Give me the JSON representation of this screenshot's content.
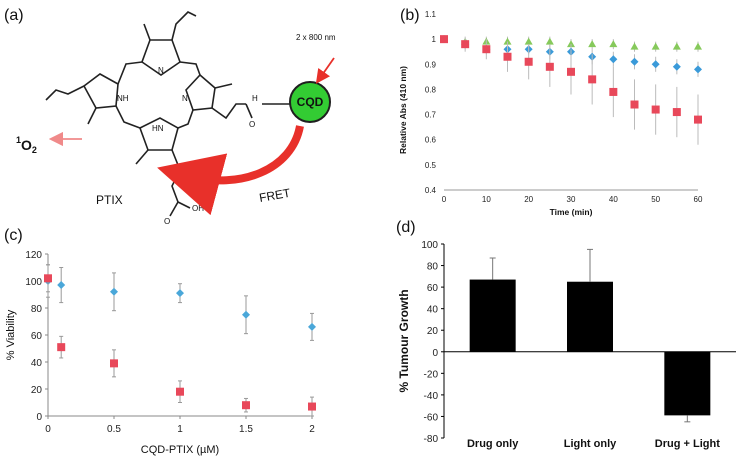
{
  "panels": {
    "a": {
      "label": "(a)",
      "molecule_name": "PTIX",
      "nanoparticle_label": "CQD",
      "excitation_label": "2 x 800 nm",
      "transfer_label": "FRET",
      "singlet_oxygen": {
        "prefix": "1",
        "species": "O",
        "subscript": "2"
      },
      "atoms": {
        "nh": "NH",
        "n": "N",
        "hn": "HN",
        "h": "H",
        "o": "O",
        "oh": "OH"
      },
      "colors": {
        "cqd": "#33cc33",
        "arrow": "#e8302a",
        "o2_arrow": "#f08a8a"
      }
    },
    "b": {
      "label": "(b)"
    },
    "c": {
      "label": "(c)"
    },
    "d": {
      "label": "(d)"
    }
  },
  "chart_data": [
    {
      "panel": "b",
      "type": "scatter",
      "title": "",
      "xlabel": "Time (min)",
      "ylabel": "Relative Abs (410 nm)",
      "xlim": [
        0,
        60
      ],
      "ylim": [
        0.4,
        1.1
      ],
      "xticks": [
        0,
        10,
        20,
        30,
        40,
        50,
        60
      ],
      "yticks": [
        0.4,
        0.5,
        0.6,
        0.7,
        0.8,
        0.9,
        1,
        1.1
      ],
      "ytick_labels": [
        "0.4",
        "0.5",
        "0.6",
        "0.7",
        "0.8",
        "0.9",
        "1",
        "1.1"
      ],
      "grid": false,
      "series": [
        {
          "color": "#86c95b",
          "marker": "triangle",
          "x": [
            0,
            5,
            10,
            15,
            20,
            25,
            30,
            35,
            40,
            45,
            50,
            55,
            60
          ],
          "y": [
            1.0,
            0.99,
            0.99,
            0.99,
            0.99,
            0.99,
            0.98,
            0.98,
            0.98,
            0.97,
            0.97,
            0.97,
            0.97
          ],
          "err": [
            0.01,
            0.01,
            0.02,
            0.02,
            0.02,
            0.02,
            0.02,
            0.02,
            0.02,
            0.02,
            0.02,
            0.02,
            0.02
          ]
        },
        {
          "color": "#3a9ad9",
          "marker": "diamond",
          "x": [
            0,
            5,
            10,
            15,
            20,
            25,
            30,
            35,
            40,
            45,
            50,
            55,
            60
          ],
          "y": [
            1.0,
            0.98,
            0.96,
            0.96,
            0.96,
            0.95,
            0.95,
            0.93,
            0.92,
            0.91,
            0.9,
            0.89,
            0.88
          ],
          "err": [
            0.01,
            0.02,
            0.02,
            0.02,
            0.02,
            0.03,
            0.03,
            0.03,
            0.03,
            0.03,
            0.03,
            0.03,
            0.03
          ]
        },
        {
          "color": "#e8485a",
          "marker": "square",
          "x": [
            0,
            5,
            10,
            15,
            20,
            25,
            30,
            35,
            40,
            45,
            50,
            55,
            60
          ],
          "y": [
            1.0,
            0.98,
            0.96,
            0.93,
            0.91,
            0.89,
            0.87,
            0.84,
            0.79,
            0.74,
            0.72,
            0.71,
            0.68
          ],
          "err": [
            0.01,
            0.03,
            0.04,
            0.06,
            0.07,
            0.08,
            0.09,
            0.1,
            0.1,
            0.1,
            0.1,
            0.1,
            0.1
          ]
        }
      ]
    },
    {
      "panel": "c",
      "type": "scatter",
      "title": "",
      "xlabel": "CQD-PTIX (µM)",
      "ylabel": "% Viability",
      "xlim": [
        0,
        2
      ],
      "ylim": [
        0,
        120
      ],
      "xticks": [
        0,
        0.5,
        1,
        1.5,
        2
      ],
      "xtick_labels": [
        "0",
        "0.5",
        "1",
        "1.5",
        "2"
      ],
      "yticks": [
        0,
        20,
        40,
        60,
        80,
        100,
        120
      ],
      "grid": false,
      "series": [
        {
          "color": "#4aa7d9",
          "marker": "diamond",
          "x": [
            0,
            0.1,
            0.5,
            1,
            1.5,
            2
          ],
          "y": [
            100,
            97,
            92,
            91,
            75,
            66
          ],
          "err": [
            12,
            13,
            14,
            7,
            14,
            10
          ]
        },
        {
          "color": "#e8485a",
          "marker": "square",
          "x": [
            0,
            0.1,
            0.5,
            1,
            1.5,
            2
          ],
          "y": [
            102,
            51,
            39,
            18,
            8,
            7
          ],
          "err": [
            10,
            8,
            10,
            8,
            5,
            7
          ]
        }
      ]
    },
    {
      "panel": "d",
      "type": "bar",
      "title": "",
      "xlabel": "",
      "ylabel": "% Tumour Growth",
      "categories": [
        "Drug only",
        "Light only",
        "Drug + Light"
      ],
      "values": [
        67,
        65,
        -59
      ],
      "errors": [
        20,
        30,
        6
      ],
      "ylim": [
        -80,
        100
      ],
      "yticks": [
        -80,
        -60,
        -40,
        -20,
        0,
        20,
        40,
        60,
        80,
        100
      ],
      "bar_color": "#000000",
      "grid": false
    }
  ]
}
